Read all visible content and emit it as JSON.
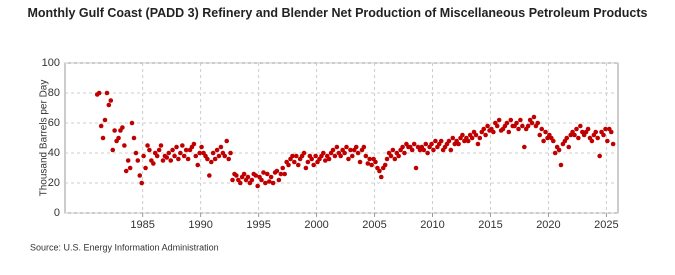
{
  "chart_data": {
    "type": "scatter",
    "title": "Monthly Gulf Coast (PADD 3) Refinery and Blender Net Production of Miscellaneous Petroleum Products",
    "y_label": "Thousand Barrels per Day",
    "source": "Source: U.S. Energy Information Administration",
    "color": "#c00000",
    "grid": true,
    "xlim": [
      1978.3,
      2026
    ],
    "ylim": [
      0,
      100
    ],
    "xticks": [
      1985,
      1990,
      1995,
      2000,
      2005,
      2010,
      2015,
      2020,
      2025
    ],
    "yticks": [
      0,
      20,
      40,
      60,
      80,
      100
    ],
    "x": [
      1981.08,
      1981.25,
      1981.42,
      1981.58,
      1981.75,
      1981.92,
      1982.08,
      1982.25,
      1982.42,
      1982.58,
      1982.75,
      1982.92,
      1983.08,
      1983.25,
      1983.42,
      1983.58,
      1983.75,
      1983.92,
      1984.08,
      1984.25,
      1984.42,
      1984.58,
      1984.75,
      1984.92,
      1985.08,
      1985.25,
      1985.42,
      1985.58,
      1985.75,
      1985.92,
      1986.08,
      1986.25,
      1986.42,
      1986.58,
      1986.75,
      1986.92,
      1987.08,
      1987.25,
      1987.42,
      1987.58,
      1987.75,
      1987.92,
      1988.08,
      1988.25,
      1988.42,
      1988.58,
      1988.75,
      1988.92,
      1989.08,
      1989.25,
      1989.42,
      1989.58,
      1989.75,
      1989.92,
      1990.08,
      1990.25,
      1990.42,
      1990.58,
      1990.75,
      1990.92,
      1991.08,
      1991.25,
      1991.42,
      1991.58,
      1991.75,
      1991.92,
      1992.08,
      1992.25,
      1992.42,
      1992.58,
      1992.75,
      1992.92,
      1993.08,
      1993.25,
      1993.42,
      1993.58,
      1993.75,
      1993.92,
      1994.08,
      1994.25,
      1994.42,
      1994.58,
      1994.75,
      1994.92,
      1995.08,
      1995.25,
      1995.42,
      1995.58,
      1995.75,
      1995.92,
      1996.08,
      1996.25,
      1996.42,
      1996.58,
      1996.75,
      1996.92,
      1997.08,
      1997.25,
      1997.42,
      1997.58,
      1997.75,
      1997.92,
      1998.08,
      1998.25,
      1998.42,
      1998.58,
      1998.75,
      1998.92,
      1999.08,
      1999.25,
      1999.42,
      1999.58,
      1999.75,
      1999.92,
      2000.08,
      2000.25,
      2000.42,
      2000.58,
      2000.75,
      2000.92,
      2001.08,
      2001.25,
      2001.42,
      2001.58,
      2001.75,
      2001.92,
      2002.08,
      2002.25,
      2002.42,
      2002.58,
      2002.75,
      2002.92,
      2003.08,
      2003.25,
      2003.42,
      2003.58,
      2003.75,
      2003.92,
      2004.08,
      2004.25,
      2004.42,
      2004.58,
      2004.75,
      2004.92,
      2005.08,
      2005.25,
      2005.42,
      2005.58,
      2005.75,
      2005.92,
      2006.08,
      2006.25,
      2006.42,
      2006.58,
      2006.75,
      2006.92,
      2007.08,
      2007.25,
      2007.42,
      2007.58,
      2007.75,
      2007.92,
      2008.08,
      2008.25,
      2008.42,
      2008.58,
      2008.75,
      2008.92,
      2009.08,
      2009.25,
      2009.42,
      2009.58,
      2009.75,
      2009.92,
      2010.08,
      2010.25,
      2010.42,
      2010.58,
      2010.75,
      2010.92,
      2011.08,
      2011.25,
      2011.42,
      2011.58,
      2011.75,
      2011.92,
      2012.08,
      2012.25,
      2012.42,
      2012.58,
      2012.75,
      2012.92,
      2013.08,
      2013.25,
      2013.42,
      2013.58,
      2013.75,
      2013.92,
      2014.08,
      2014.25,
      2014.42,
      2014.58,
      2014.75,
      2014.92,
      2015.08,
      2015.25,
      2015.42,
      2015.58,
      2015.75,
      2015.92,
      2016.08,
      2016.25,
      2016.42,
      2016.58,
      2016.75,
      2016.92,
      2017.08,
      2017.25,
      2017.42,
      2017.58,
      2017.75,
      2017.92,
      2018.08,
      2018.25,
      2018.42,
      2018.58,
      2018.75,
      2018.92,
      2019.08,
      2019.25,
      2019.42,
      2019.58,
      2019.75,
      2019.92,
      2020.08,
      2020.25,
      2020.42,
      2020.58,
      2020.75,
      2020.92,
      2021.08,
      2021.25,
      2021.42,
      2021.58,
      2021.75,
      2021.92,
      2022.08,
      2022.25,
      2022.42,
      2022.58,
      2022.75,
      2022.92,
      2023.08,
      2023.25,
      2023.42,
      2023.58,
      2023.75,
      2023.92,
      2024.08,
      2024.25,
      2024.42,
      2024.58,
      2024.75,
      2024.92,
      2025.08,
      2025.25,
      2025.42,
      2025.58
    ],
    "values": [
      79,
      80,
      58,
      50,
      62,
      80,
      72,
      75,
      42,
      55,
      48,
      50,
      55,
      57,
      45,
      28,
      35,
      30,
      60,
      50,
      40,
      35,
      25,
      20,
      38,
      30,
      45,
      42,
      35,
      33,
      40,
      38,
      42,
      45,
      35,
      38,
      37,
      40,
      35,
      42,
      38,
      44,
      36,
      40,
      45,
      38,
      42,
      36,
      42,
      44,
      46,
      38,
      32,
      40,
      44,
      40,
      38,
      36,
      25,
      34,
      40,
      36,
      42,
      38,
      44,
      40,
      38,
      48,
      36,
      40,
      22,
      26,
      25,
      22,
      20,
      24,
      26,
      22,
      24,
      20,
      22,
      26,
      25,
      18,
      24,
      22,
      27,
      20,
      26,
      21,
      24,
      20,
      27,
      28,
      22,
      26,
      30,
      26,
      34,
      32,
      36,
      38,
      34,
      38,
      32,
      36,
      38,
      40,
      30,
      34,
      38,
      36,
      32,
      38,
      34,
      36,
      38,
      40,
      35,
      38,
      36,
      40,
      42,
      38,
      44,
      40,
      38,
      42,
      40,
      44,
      36,
      42,
      38,
      42,
      44,
      40,
      34,
      42,
      44,
      38,
      33,
      36,
      32,
      36,
      34,
      30,
      28,
      24,
      30,
      32,
      36,
      40,
      38,
      42,
      36,
      40,
      38,
      42,
      44,
      40,
      46,
      44,
      44,
      42,
      46,
      30,
      44,
      42,
      44,
      42,
      46,
      40,
      44,
      46,
      42,
      48,
      44,
      46,
      48,
      42,
      44,
      46,
      48,
      42,
      50,
      46,
      48,
      46,
      50,
      52,
      48,
      50,
      48,
      52,
      50,
      54,
      52,
      46,
      50,
      54,
      56,
      52,
      58,
      55,
      56,
      54,
      60,
      58,
      62,
      55,
      56,
      58,
      60,
      54,
      62,
      58,
      58,
      60,
      56,
      62,
      58,
      44,
      56,
      58,
      62,
      60,
      64,
      58,
      60,
      52,
      56,
      48,
      54,
      50,
      52,
      50,
      48,
      40,
      44,
      42,
      32,
      46,
      48,
      50,
      44,
      52,
      54,
      52,
      56,
      50,
      58,
      54,
      52,
      54,
      56,
      50,
      48,
      52,
      54,
      50,
      38,
      54,
      52,
      56,
      48,
      56,
      54,
      46
    ]
  }
}
